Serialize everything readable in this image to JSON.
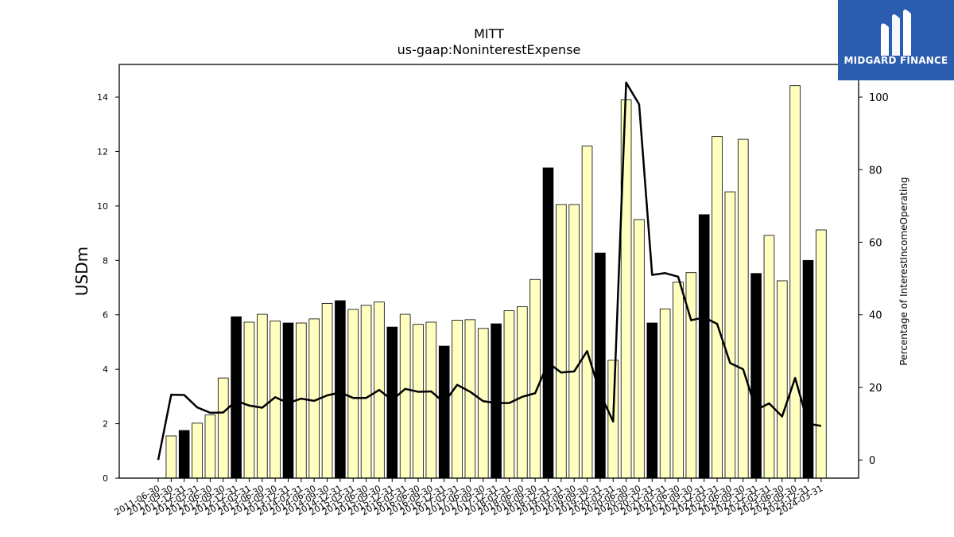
{
  "chart_data": {
    "type": "bar+line",
    "title": "MITT",
    "subtitle": "us-gaap:NoninterestExpense",
    "ylabel": "USDm",
    "y2label": "Percentage of InterestIncomeOperating",
    "ylim": [
      0,
      15.2
    ],
    "y2lim": [
      -5,
      109
    ],
    "yticks": [
      0,
      2,
      4,
      6,
      8,
      10,
      12,
      14
    ],
    "y2ticks": [
      0,
      20,
      40,
      60,
      80,
      100
    ],
    "categories": [
      "2011-06-30",
      "2011-09-30",
      "2011-12-31",
      "2012-03-31",
      "2012-06-30",
      "2012-09-30",
      "2012-12-31",
      "2013-03-31",
      "2013-06-30",
      "2013-09-30",
      "2013-12-31",
      "2014-03-31",
      "2014-06-30",
      "2014-09-30",
      "2014-12-31",
      "2015-03-31",
      "2015-06-30",
      "2015-09-30",
      "2015-12-31",
      "2016-03-31",
      "2016-06-30",
      "2016-09-30",
      "2016-12-31",
      "2017-03-31",
      "2017-06-30",
      "2017-09-30",
      "2017-12-31",
      "2018-03-31",
      "2018-06-30",
      "2018-09-30",
      "2018-12-31",
      "2019-03-31",
      "2019-06-30",
      "2019-09-30",
      "2019-12-31",
      "2020-03-31",
      "2020-06-30",
      "2020-09-30",
      "2020-12-31",
      "2021-03-31",
      "2021-06-30",
      "2021-09-30",
      "2021-12-31",
      "2022-03-31",
      "2022-06-30",
      "2022-09-30",
      "2022-12-31",
      "2023-03-31",
      "2023-06-30",
      "2023-09-30",
      "2023-12-31",
      "2024-03-31"
    ],
    "bar_values": [
      null,
      1.55,
      1.75,
      2.02,
      2.32,
      3.68,
      5.93,
      5.73,
      6.02,
      5.77,
      5.7,
      5.7,
      5.85,
      6.42,
      6.52,
      6.2,
      6.35,
      6.47,
      5.55,
      6.02,
      5.65,
      5.73,
      4.85,
      5.8,
      5.82,
      5.5,
      5.67,
      6.15,
      6.3,
      7.3,
      11.4,
      10.05,
      10.05,
      12.2,
      8.27,
      4.33,
      13.9,
      9.5,
      5.7,
      6.22,
      7.2,
      7.55,
      9.68,
      12.55,
      10.52,
      12.45,
      7.52,
      8.92,
      7.25,
      14.42,
      8.0,
      9.12
    ],
    "bar_highlight": [
      false,
      false,
      true,
      false,
      false,
      false,
      true,
      false,
      false,
      false,
      true,
      false,
      false,
      false,
      true,
      false,
      false,
      false,
      true,
      false,
      false,
      false,
      true,
      false,
      false,
      false,
      true,
      false,
      false,
      false,
      true,
      false,
      false,
      false,
      true,
      false,
      false,
      false,
      true,
      false,
      false,
      false,
      true,
      false,
      false,
      false,
      true,
      false,
      false,
      false,
      true,
      false
    ],
    "line_values": [
      0,
      18,
      17.9,
      14.5,
      13,
      13.1,
      16.3,
      15,
      14.4,
      17.3,
      15.7,
      16.9,
      16.3,
      17.8,
      18.6,
      17.1,
      17.1,
      19.3,
      16.5,
      19.6,
      18.8,
      18.9,
      15.8,
      20.7,
      18.8,
      16.2,
      15.7,
      15.7,
      17.4,
      18.4,
      26.8,
      24.1,
      24.4,
      30,
      18.3,
      10.6,
      104,
      98,
      51,
      51.5,
      50.5,
      38.5,
      39.3,
      37.5,
      26.7,
      25,
      13.8,
      15.6,
      12,
      22.6,
      10,
      9.4
    ],
    "colors": {
      "bar": "#ffffc0",
      "bar_highlight": "#000000",
      "line": "#000000"
    }
  },
  "logo": {
    "text": "MIDGARD FINANCE"
  }
}
